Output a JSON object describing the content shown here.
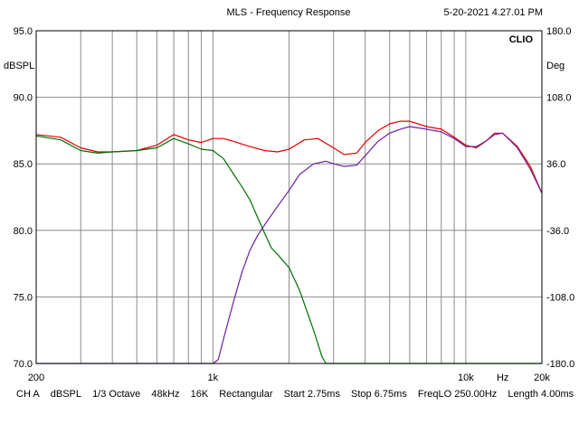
{
  "header": {
    "title": "MLS - Frequency Response",
    "timestamp": "5-20-2021 4.27.01 PM",
    "brand": "CLIO"
  },
  "footer": {
    "channel": "CH A",
    "unit": "dBSPL",
    "smoothing": "1/3 Octave",
    "sample_rate": "48kHz",
    "size": "16K",
    "window": "Rectangular",
    "start": "Start 2.75ms",
    "stop": "Stop 6.75ms",
    "freqlo": "FreqLO 250.00Hz",
    "length": "Length 4.00ms"
  },
  "chart_data": {
    "type": "line",
    "title": "MLS - Frequency Response",
    "xlabel": "Hz",
    "ylabel": "dBSPL",
    "y2label": "Deg",
    "xscale": "log",
    "xlim": [
      200,
      20000
    ],
    "ylim": [
      70,
      95
    ],
    "y2lim": [
      -180,
      180
    ],
    "grid": true,
    "x_tick_labels": [
      {
        "value": 200,
        "label": "200"
      },
      {
        "value": 1000,
        "label": "1k"
      },
      {
        "value": 10000,
        "label": "10k"
      },
      {
        "value": 14000,
        "label": "Hz"
      },
      {
        "value": 20000,
        "label": "20k"
      }
    ],
    "y_ticks": [
      {
        "value": 95,
        "label": "95.0"
      },
      {
        "value": 90,
        "label": "90.0"
      },
      {
        "value": 85,
        "label": "85.0"
      },
      {
        "value": 80,
        "label": "80.0"
      },
      {
        "value": 75,
        "label": "75.0"
      },
      {
        "value": 70,
        "label": "70.0"
      }
    ],
    "y2_ticks": [
      {
        "value": 180,
        "label": "180.0"
      },
      {
        "value": 108,
        "label": "108.0"
      },
      {
        "value": 36,
        "label": "36.0"
      },
      {
        "value": -36,
        "label": "-36.0"
      },
      {
        "value": -108,
        "label": "-108.0"
      },
      {
        "value": -180,
        "label": "-180.0"
      }
    ],
    "series": [
      {
        "color": "#e00000",
        "x": [
          200,
          250,
          300,
          350,
          400,
          500,
          600,
          700,
          800,
          900,
          1000,
          1100,
          1200,
          1400,
          1600,
          1800,
          2000,
          2300,
          2600,
          3000,
          3300,
          3700,
          4000,
          4500,
          5000,
          5500,
          6000,
          7000,
          8000,
          9000,
          10000,
          11000,
          12000,
          13000,
          14000,
          16000,
          18000,
          20000
        ],
        "values": [
          87.2,
          87.0,
          86.2,
          85.9,
          85.9,
          86.0,
          86.4,
          87.2,
          86.8,
          86.6,
          86.9,
          86.9,
          86.7,
          86.3,
          86.0,
          85.9,
          86.1,
          86.8,
          86.9,
          86.2,
          85.7,
          85.8,
          86.6,
          87.5,
          88.0,
          88.2,
          88.2,
          87.8,
          87.6,
          87.0,
          86.4,
          86.2,
          86.7,
          87.3,
          87.3,
          86.3,
          84.8,
          82.8
        ]
      },
      {
        "color": "#007000",
        "x": [
          200,
          250,
          300,
          350,
          400,
          500,
          600,
          700,
          800,
          900,
          1000,
          1100,
          1200,
          1300,
          1400,
          1500,
          1600,
          1700,
          1800,
          2000,
          2200,
          2500,
          2700,
          2800,
          3000,
          20000
        ],
        "values": [
          87.1,
          86.8,
          86.0,
          85.8,
          85.9,
          86.0,
          86.2,
          86.9,
          86.5,
          86.1,
          86.0,
          85.4,
          84.3,
          83.3,
          82.3,
          81.0,
          79.8,
          78.7,
          78.2,
          77.2,
          75.5,
          72.5,
          70.5,
          70.0,
          70.0,
          70.0
        ]
      },
      {
        "color": "#7020a0",
        "x": [
          200,
          1000,
          1050,
          1100,
          1200,
          1300,
          1400,
          1500,
          1600,
          1800,
          2000,
          2200,
          2500,
          2800,
          3000,
          3300,
          3700,
          4000,
          4500,
          5000,
          5500,
          6000,
          7000,
          8000,
          9000,
          10000,
          11000,
          12000,
          13000,
          14000,
          16000,
          18000,
          20000
        ],
        "values": [
          70.0,
          70.0,
          70.3,
          71.8,
          74.5,
          76.8,
          78.5,
          79.6,
          80.4,
          81.8,
          83.0,
          84.2,
          85.0,
          85.2,
          85.0,
          84.8,
          84.9,
          85.6,
          86.7,
          87.3,
          87.6,
          87.8,
          87.6,
          87.4,
          86.9,
          86.3,
          86.3,
          86.7,
          87.2,
          87.3,
          86.2,
          84.6,
          82.8
        ]
      }
    ]
  }
}
